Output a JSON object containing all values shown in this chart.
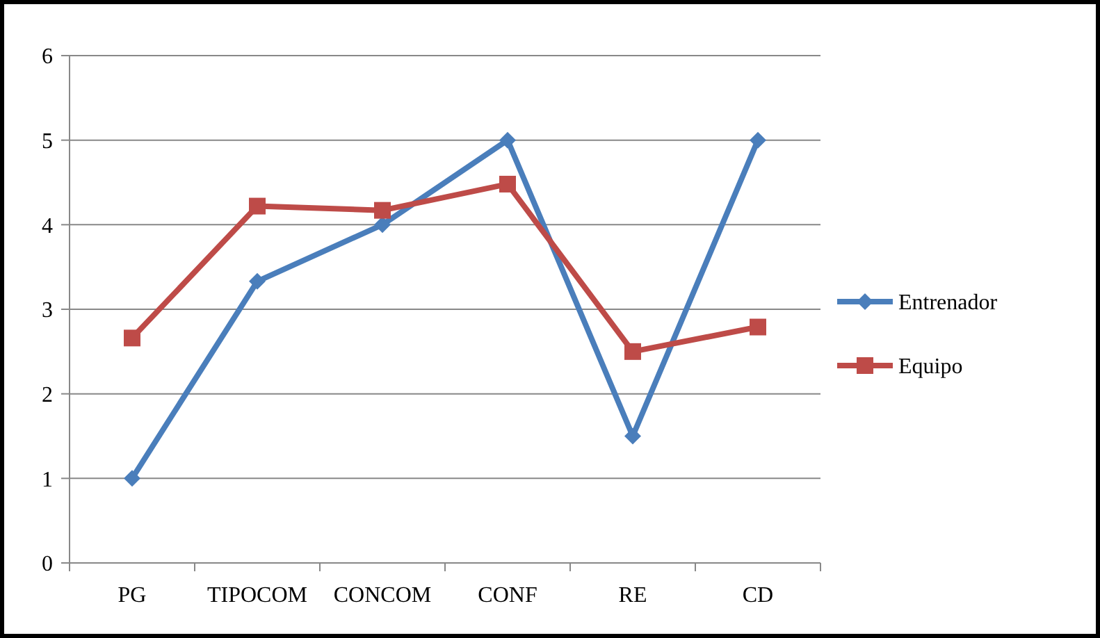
{
  "chart_data": {
    "type": "line",
    "categories": [
      "PG",
      "TIPOCOM",
      "CONCOM",
      "CONF",
      "RE",
      "CD"
    ],
    "series": [
      {
        "name": "Entrenador",
        "color": "#4a7ebb",
        "marker": "diamond",
        "values": [
          1,
          3.33,
          4,
          5,
          1.5,
          5
        ]
      },
      {
        "name": "Equipo",
        "color": "#be4b48",
        "marker": "square",
        "values": [
          2.66,
          4.22,
          4.17,
          4.48,
          2.5,
          2.79
        ]
      }
    ],
    "ylim": [
      0,
      6
    ],
    "yticks": [
      0,
      1,
      2,
      3,
      4,
      5,
      6
    ],
    "grid": "y",
    "legend": "right",
    "line_style": "solid"
  }
}
